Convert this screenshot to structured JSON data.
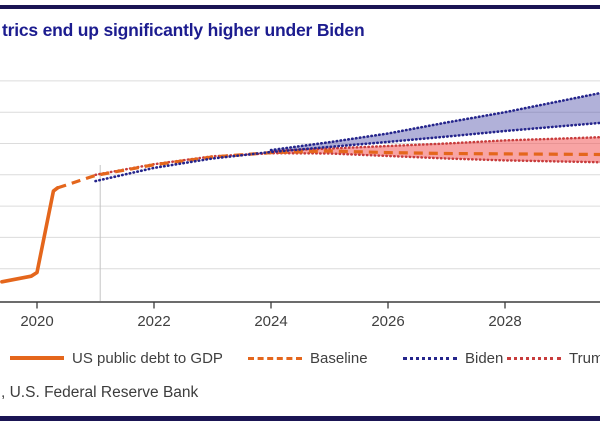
{
  "header": {
    "title_visible_fragment": "trics end up significantly higher under Biden"
  },
  "source_line_visible_fragment": ", U.S. Federal Reserve Bank",
  "colors": {
    "accent_orange": "#E4661C",
    "biden_navy": "#25258C",
    "trump_red": "#C83C3C",
    "biden_band_fill": "rgba(70,70,165,0.42)",
    "trump_band_fill": "rgba(242,90,90,0.55)",
    "title_navy": "#1C1C8F",
    "border_navy": "#1A1554",
    "grid": "#DCDCDC",
    "axis": "#3C3C3C",
    "divider_gray": "#C4C4C4",
    "label_text": "#404040"
  },
  "legend": {
    "items": [
      {
        "label": "US public debt to GDP",
        "style": "solid",
        "color": "#E4661C"
      },
      {
        "label": "Baseline",
        "style": "dashed",
        "color": "#E4661C"
      },
      {
        "label": "Biden",
        "style": "dotted",
        "color": "#25258C"
      },
      {
        "label": "Trump",
        "style": "dotted",
        "color": "#C83C3C"
      }
    ]
  },
  "chart_data": {
    "type": "line",
    "title_visible_fragment": "trics end up significantly higher under Biden",
    "x_tick_labels": [
      "2020",
      "2022",
      "2024",
      "2026",
      "2028"
    ],
    "x_range": [
      2019.4,
      2029.65
    ],
    "y_axis_labels_visible": false,
    "y_unit_estimated": "% of GDP (y-axis tick labels are cropped out of frame; values estimated from gridlines)",
    "y_gridlines_est": [
      80,
      85,
      90,
      95,
      100,
      105,
      110
    ],
    "ylim_est": [
      75,
      115
    ],
    "grid": true,
    "legend_position": "bottom",
    "projection_divider_year": 2021.08,
    "series": [
      {
        "id": "trump_upper",
        "legend": "Trump",
        "color": "#C83C3C",
        "style": "dotted",
        "width": 2.5,
        "points": [
          [
            2024,
            98.8
          ],
          [
            2025,
            99.2
          ],
          [
            2026,
            99.6
          ],
          [
            2027,
            100.0
          ],
          [
            2028,
            100.5
          ],
          [
            2029.65,
            101.0
          ]
        ]
      },
      {
        "id": "trump_lower",
        "legend": "Trump",
        "color": "#C83C3C",
        "style": "dotted",
        "width": 2.5,
        "points": [
          [
            2021,
            95.0
          ],
          [
            2022,
            96.7
          ],
          [
            2023,
            97.95
          ],
          [
            2024,
            98.45
          ],
          [
            2025,
            98.4
          ],
          [
            2026,
            98.0
          ],
          [
            2027,
            97.6
          ],
          [
            2028,
            97.3
          ],
          [
            2029.65,
            97.0
          ]
        ]
      },
      {
        "id": "baseline",
        "legend": "Baseline",
        "color": "#E4661C",
        "style": "dashed",
        "width": 3.2,
        "points": [
          [
            2020.35,
            92.9
          ],
          [
            2021,
            94.9
          ],
          [
            2022,
            96.6
          ],
          [
            2023,
            97.85
          ],
          [
            2024,
            98.55
          ],
          [
            2025,
            98.8
          ],
          [
            2026,
            98.55
          ],
          [
            2027,
            98.4
          ],
          [
            2029.65,
            98.25
          ]
        ]
      },
      {
        "id": "biden_main",
        "legend": "Biden",
        "color": "#25258C",
        "style": "dotted",
        "width": 2.6,
        "points": [
          [
            2021,
            94.0
          ],
          [
            2022,
            96.1
          ],
          [
            2023,
            97.6
          ],
          [
            2024,
            98.65
          ],
          [
            2025,
            99.45
          ],
          [
            2026,
            100.25
          ],
          [
            2027,
            101.1
          ],
          [
            2028,
            102.0
          ],
          [
            2029.65,
            103.3
          ]
        ]
      },
      {
        "id": "biden_upper",
        "legend": "Biden",
        "color": "#25258C",
        "style": "dotted",
        "width": 2.6,
        "points": [
          [
            2024,
            98.95
          ],
          [
            2025,
            100.2
          ],
          [
            2026,
            101.6
          ],
          [
            2027,
            103.35
          ],
          [
            2028,
            105.0
          ],
          [
            2029.65,
            108.1
          ]
        ]
      },
      {
        "id": "history",
        "legend": "US public debt to GDP",
        "color": "#E4661C",
        "style": "solid",
        "width": 3.6,
        "points": [
          [
            2019.4,
            77.9
          ],
          [
            2019.9,
            78.8
          ],
          [
            2020.0,
            79.4
          ],
          [
            2020.28,
            92.4
          ],
          [
            2020.35,
            92.9
          ]
        ]
      }
    ],
    "bands": [
      {
        "upper": "biden_upper",
        "lower": "biden_main",
        "from": 2024,
        "fill": "rgba(70,70,165,0.42)"
      },
      {
        "upper": "trump_upper",
        "lower": "trump_lower",
        "from": 2024,
        "fill": "rgba(242,90,90,0.55)"
      }
    ]
  }
}
